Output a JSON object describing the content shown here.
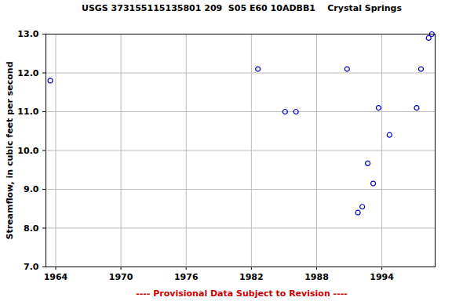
{
  "chart_data": {
    "type": "scatter",
    "title": "USGS 373155115135801 209  S05 E60 10ADBB1    Crystal Springs",
    "y_label": "Streamflow, in cubic feet per second",
    "caption": "---- Provisional Data Subject to Revision ----",
    "x": [
      1963.5,
      1982.6,
      1985.1,
      1986.1,
      1990.8,
      1991.8,
      1992.2,
      1992.7,
      1993.2,
      1993.7,
      1994.7,
      1997.2,
      1997.6,
      1998.3,
      1998.6
    ],
    "values": [
      11.8,
      12.1,
      11.0,
      11.0,
      12.1,
      8.4,
      8.55,
      9.67,
      9.15,
      11.1,
      10.4,
      11.1,
      12.1,
      12.9,
      13.0
    ],
    "color": "#0000cc",
    "marker": "circle",
    "xlim": [
      1963.1,
      1998.9
    ],
    "xticks": [
      1964,
      1970,
      1976,
      1982,
      1988,
      1994
    ],
    "ylim": [
      7,
      13
    ],
    "yticks": [
      {
        "value": 7,
        "label": "7.0"
      },
      {
        "value": 8,
        "label": "8.0"
      },
      {
        "value": 9,
        "label": "9.0"
      },
      {
        "value": 10,
        "label": "10.0"
      },
      {
        "value": 11,
        "label": "11.0"
      },
      {
        "value": 12,
        "label": "12.0"
      },
      {
        "value": 13,
        "label": "13.0"
      }
    ],
    "grid": true
  }
}
